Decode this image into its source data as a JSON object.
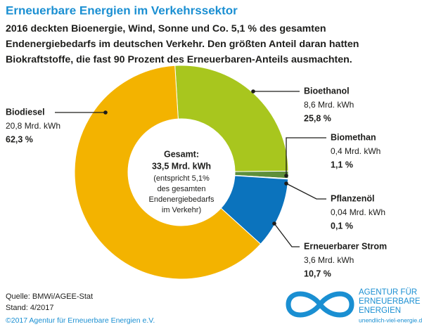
{
  "chart_data": {
    "type": "donut",
    "title": "Erneuerbare Energien im Verkehrssektor",
    "subtitle": [
      "2016 deckten Bioenergie, Wind, Sonne und Co. 5,1 % des gesamten",
      "Endenergiebedarfs im deutschen Verkehr. Den größten Anteil daran hatten",
      "Biokraftstoffe, die fast 90 Prozent des Erneuerbaren-Anteils ausmachten."
    ],
    "categories": [
      "Bioethanol",
      "Biomethan",
      "Pflanzenöl",
      "Erneuerbarer Strom",
      "Biodiesel"
    ],
    "values": [
      25.8,
      1.1,
      0.1,
      10.7,
      62.3
    ],
    "value_labels": [
      "25,8 %",
      "1,1 %",
      "0,1 %",
      "10,7 %",
      "62,3 %"
    ],
    "amounts": [
      "8,6 Mrd. kWh",
      "0,4 Mrd. kWh",
      "0,04 Mrd. kWh",
      "3,6 Mrd. kWh",
      "20,8 Mrd. kWh"
    ],
    "colors": [
      "#a8c61e",
      "#5e8f3a",
      "#9cc98a",
      "#0b73bd",
      "#f3b300"
    ],
    "center": [
      "Gesamt:",
      "33,5 Mrd. kWh",
      "(entspricht  5,1%",
      "des gesamten",
      "Endenergiebedarfs",
      "im Verkehr)"
    ]
  },
  "footer": {
    "source": "Quelle: BMWi/AGEE-Stat",
    "date": "Stand: 4/2017",
    "copyright": "©2017 Agentur für Erneuerbare Energien e.V.",
    "logo": [
      "AGENTUR FÜR",
      "ERNEUERBARE",
      "ENERGIEN"
    ],
    "url": "unendlich-viel-energie.de"
  }
}
